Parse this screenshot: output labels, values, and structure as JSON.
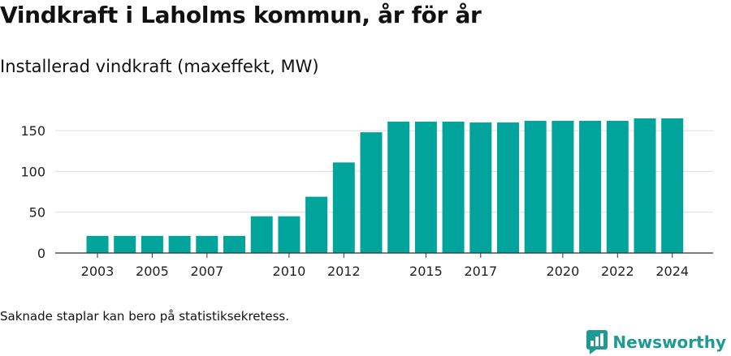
{
  "title": "Vindkraft i Laholms kommun, år för år",
  "subtitle": "Installerad vindkraft (maxeffekt, MW)",
  "footnote": "Saknade staplar kan bero på statistiksekretess.",
  "brand": {
    "name": "Newsworthy",
    "icon": "newsworthy-logo-icon",
    "color": "#1f9a92"
  },
  "chart_data": {
    "type": "bar",
    "title": "Installerad vindkraft (maxeffekt, MW)",
    "xlabel": "",
    "ylabel": "",
    "categories": [
      "2003",
      "2004",
      "2005",
      "2006",
      "2007",
      "2008",
      "2009",
      "2010",
      "2011",
      "2012",
      "2013",
      "2014",
      "2015",
      "2016",
      "2017",
      "2018",
      "2019",
      "2020",
      "2021",
      "2022",
      "2023",
      "2024"
    ],
    "x_tick_labels": [
      "2003",
      "2005",
      "2007",
      "2010",
      "2012",
      "2015",
      "2017",
      "2020",
      "2022",
      "2024"
    ],
    "values": [
      21,
      21,
      21,
      21,
      21,
      21,
      45,
      45,
      69,
      111,
      148,
      161,
      161,
      161,
      160,
      160,
      162,
      162,
      162,
      162,
      165,
      165
    ],
    "ylim": [
      0,
      175
    ],
    "y_ticks": [
      0,
      50,
      100,
      150
    ],
    "grid": true,
    "bar_color": "#00a49a"
  }
}
